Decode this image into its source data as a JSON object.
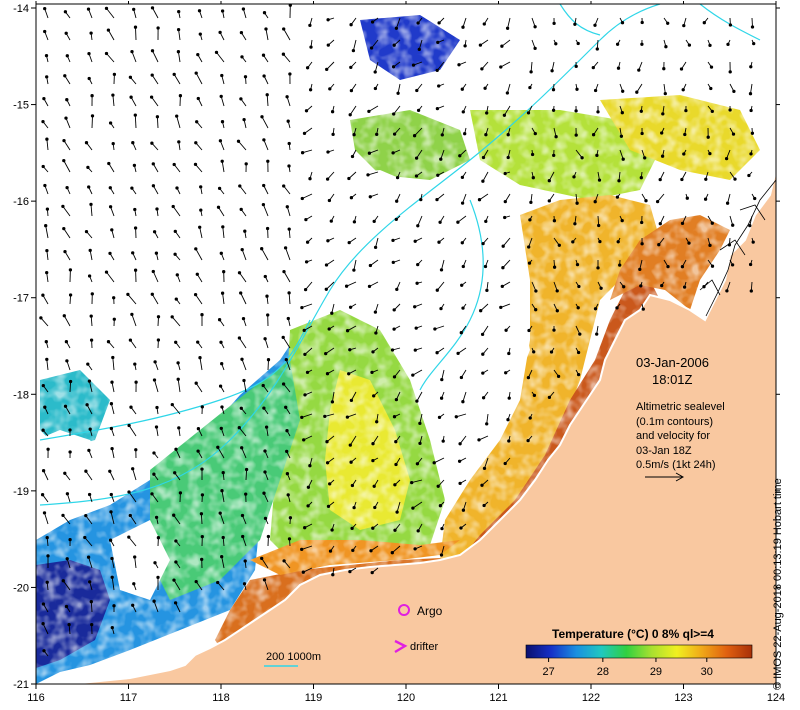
{
  "map": {
    "x_ticks": [
      "116",
      "117",
      "118",
      "119",
      "120",
      "121",
      "122",
      "123",
      "124"
    ],
    "y_ticks": [
      "-14",
      "-15",
      "-16",
      "-17",
      "-18",
      "-19",
      "-20",
      "-21"
    ],
    "land_color": "#f9c8a0",
    "contour_color": "#2fd6e8"
  },
  "date": {
    "line1": "03-Jan-2006",
    "line2": "18:01Z"
  },
  "altimetry": {
    "lines": [
      "Altimetric sealevel",
      "(0.1m contours)",
      "and velocity for",
      "03-Jan 18Z",
      "0.5m/s (1kt 24h)"
    ]
  },
  "legend": {
    "argo_label": "Argo",
    "drifter_label": "drifter",
    "argo_color": "#e020e0",
    "drifter_color": "#e020e0"
  },
  "scale": {
    "label": "200  1000m"
  },
  "colorbar": {
    "title": "Temperature (°C) 0 8% ql>=4",
    "tick_labels": [
      "27",
      "28",
      "29",
      "30"
    ],
    "colors": [
      "#0a0f6e",
      "#1530c8",
      "#1a8fe0",
      "#20c8c0",
      "#30d040",
      "#a8e030",
      "#f0f020",
      "#f0a818",
      "#e06010",
      "#a83008"
    ]
  },
  "credit": "© IMOS 22-Aug-2018 00:13:19 Hobart time"
}
